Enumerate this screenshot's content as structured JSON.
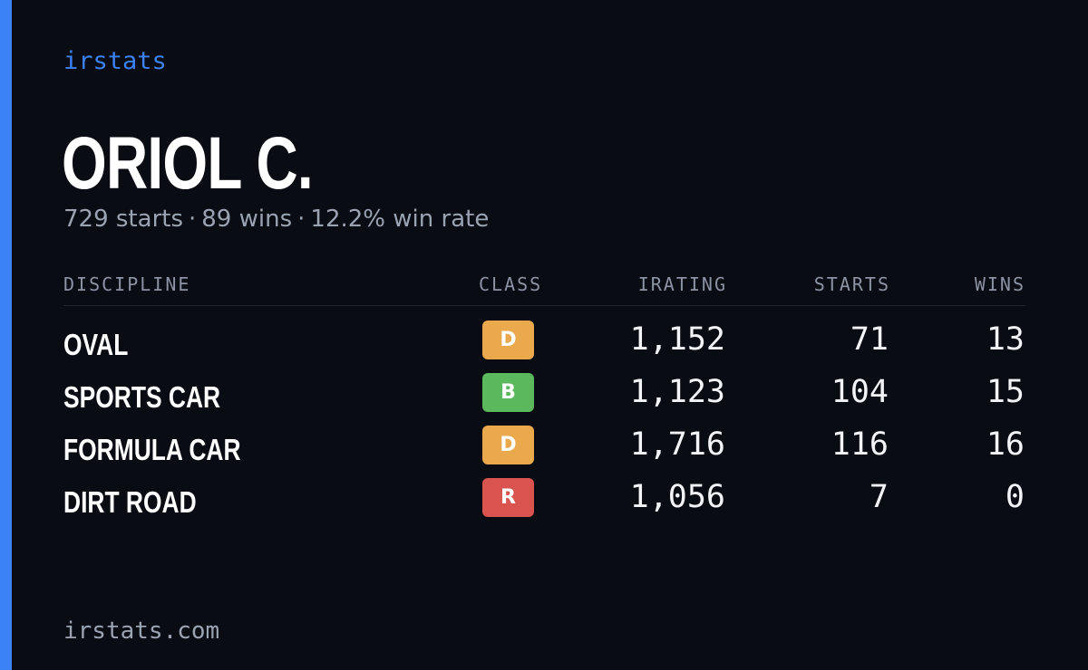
{
  "brand": "irstats",
  "driver": {
    "name": "ORIOL C."
  },
  "summary": {
    "starts": "729 starts",
    "wins": "89 wins",
    "win_rate": "12.2% win rate",
    "separator": "·"
  },
  "table": {
    "headers": {
      "discipline": "DISCIPLINE",
      "class": "CLASS",
      "irating": "IRATING",
      "starts": "STARTS",
      "wins": "WINS"
    },
    "rows": [
      {
        "discipline": "OVAL",
        "class": "D",
        "class_color": "#e9a94c",
        "irating": "1,152",
        "starts": "71",
        "wins": "13"
      },
      {
        "discipline": "SPORTS CAR",
        "class": "B",
        "class_color": "#5cb85c",
        "irating": "1,123",
        "starts": "104",
        "wins": "15"
      },
      {
        "discipline": "FORMULA CAR",
        "class": "D",
        "class_color": "#e9a94c",
        "irating": "1,716",
        "starts": "116",
        "wins": "16"
      },
      {
        "discipline": "DIRT ROAD",
        "class": "R",
        "class_color": "#d9534f",
        "irating": "1,056",
        "starts": "7",
        "wins": "0"
      }
    ]
  },
  "footer": "irstats.com",
  "colors": {
    "background": "#0a0c13",
    "accent": "#3b82f6"
  }
}
